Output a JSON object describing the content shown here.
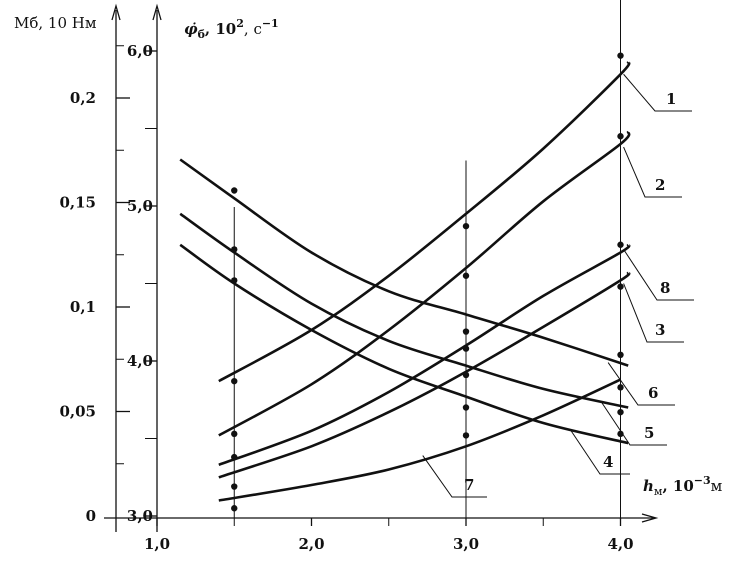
{
  "chart_data": {
    "type": "line",
    "left_axis": {
      "label": "Mб, 10 Нм",
      "ticks": [
        "0",
        "0,05",
        "0,1",
        "0,15",
        "0,2"
      ],
      "tick_values": [
        0,
        0.05,
        0.1,
        0.15,
        0.2
      ]
    },
    "right_axis": {
      "label": "φ̇б, 10², с⁻¹",
      "label_parts": {
        "symbol": "φ̇",
        "sub": "б",
        "rest": ", 10",
        "sup1": "2",
        "comma": ", с",
        "sup2": "−1"
      },
      "ticks": [
        "3,0",
        "4,0",
        "5,0",
        "6,0"
      ],
      "tick_values": [
        3.0,
        4.0,
        5.0,
        6.0
      ]
    },
    "x_axis": {
      "label": "hм, 10⁻³м",
      "label_parts": {
        "symbol": "h",
        "sub": "м",
        "rest": ", 10",
        "sup": "−3",
        "unit": "м"
      },
      "ticks": [
        "1,0",
        "2,0",
        "3,0",
        "4,0"
      ],
      "tick_values": [
        1.0,
        2.0,
        3.0,
        4.0
      ],
      "xlim": [
        1.0,
        4.2
      ]
    },
    "ylim": [
      3.0,
      6.2
    ],
    "grid": false,
    "series": [
      {
        "name": "1",
        "x": [
          1.4,
          2.0,
          2.5,
          3.0,
          3.5,
          4.0,
          4.05
        ],
        "y": [
          3.87,
          4.2,
          4.55,
          4.95,
          5.37,
          5.85,
          5.93
        ]
      },
      {
        "name": "2",
        "x": [
          1.4,
          2.0,
          2.5,
          3.0,
          3.5,
          4.0,
          4.05
        ],
        "y": [
          3.52,
          3.85,
          4.2,
          4.6,
          5.03,
          5.4,
          5.48
        ]
      },
      {
        "name": "8",
        "x": [
          1.4,
          2.0,
          2.5,
          3.0,
          3.5,
          4.0,
          4.05
        ],
        "y": [
          3.33,
          3.55,
          3.8,
          4.1,
          4.42,
          4.7,
          4.75
        ]
      },
      {
        "name": "3",
        "x": [
          1.4,
          2.0,
          2.5,
          3.0,
          3.5,
          4.0,
          4.05
        ],
        "y": [
          3.25,
          3.45,
          3.67,
          3.93,
          4.22,
          4.52,
          4.57
        ]
      },
      {
        "name": "7",
        "x": [
          1.4,
          2.0,
          2.5,
          3.0,
          3.5,
          4.0
        ],
        "y": [
          3.1,
          3.2,
          3.3,
          3.45,
          3.65,
          3.88
        ]
      },
      {
        "name": "6",
        "x": [
          1.15,
          1.5,
          2.0,
          2.5,
          3.0,
          3.5,
          4.05
        ],
        "y": [
          5.3,
          5.05,
          4.7,
          4.45,
          4.3,
          4.15,
          3.97
        ]
      },
      {
        "name": "5",
        "x": [
          1.15,
          1.5,
          2.0,
          2.5,
          3.0,
          3.5,
          4.05
        ],
        "y": [
          4.95,
          4.7,
          4.37,
          4.13,
          3.97,
          3.82,
          3.7
        ]
      },
      {
        "name": "4",
        "x": [
          1.15,
          1.5,
          2.0,
          2.5,
          3.0,
          3.5,
          4.05
        ],
        "y": [
          4.75,
          4.5,
          4.2,
          3.95,
          3.77,
          3.6,
          3.47
        ]
      }
    ],
    "points": [
      {
        "x": 1.5,
        "y": 5.1
      },
      {
        "x": 1.5,
        "y": 4.72
      },
      {
        "x": 1.5,
        "y": 4.52
      },
      {
        "x": 1.5,
        "y": 3.87
      },
      {
        "x": 1.5,
        "y": 3.53
      },
      {
        "x": 1.5,
        "y": 3.38
      },
      {
        "x": 1.5,
        "y": 3.19
      },
      {
        "x": 1.5,
        "y": 3.05
      },
      {
        "x": 3.0,
        "y": 4.87
      },
      {
        "x": 3.0,
        "y": 4.55
      },
      {
        "x": 3.0,
        "y": 4.19
      },
      {
        "x": 3.0,
        "y": 4.08
      },
      {
        "x": 3.0,
        "y": 3.91
      },
      {
        "x": 3.0,
        "y": 3.7
      },
      {
        "x": 3.0,
        "y": 3.52
      },
      {
        "x": 4.0,
        "y": 5.97
      },
      {
        "x": 4.0,
        "y": 5.45
      },
      {
        "x": 4.0,
        "y": 4.75
      },
      {
        "x": 4.0,
        "y": 4.48
      },
      {
        "x": 4.0,
        "y": 4.04
      },
      {
        "x": 4.0,
        "y": 3.83
      },
      {
        "x": 4.0,
        "y": 3.67
      },
      {
        "x": 4.0,
        "y": 3.53
      }
    ]
  }
}
